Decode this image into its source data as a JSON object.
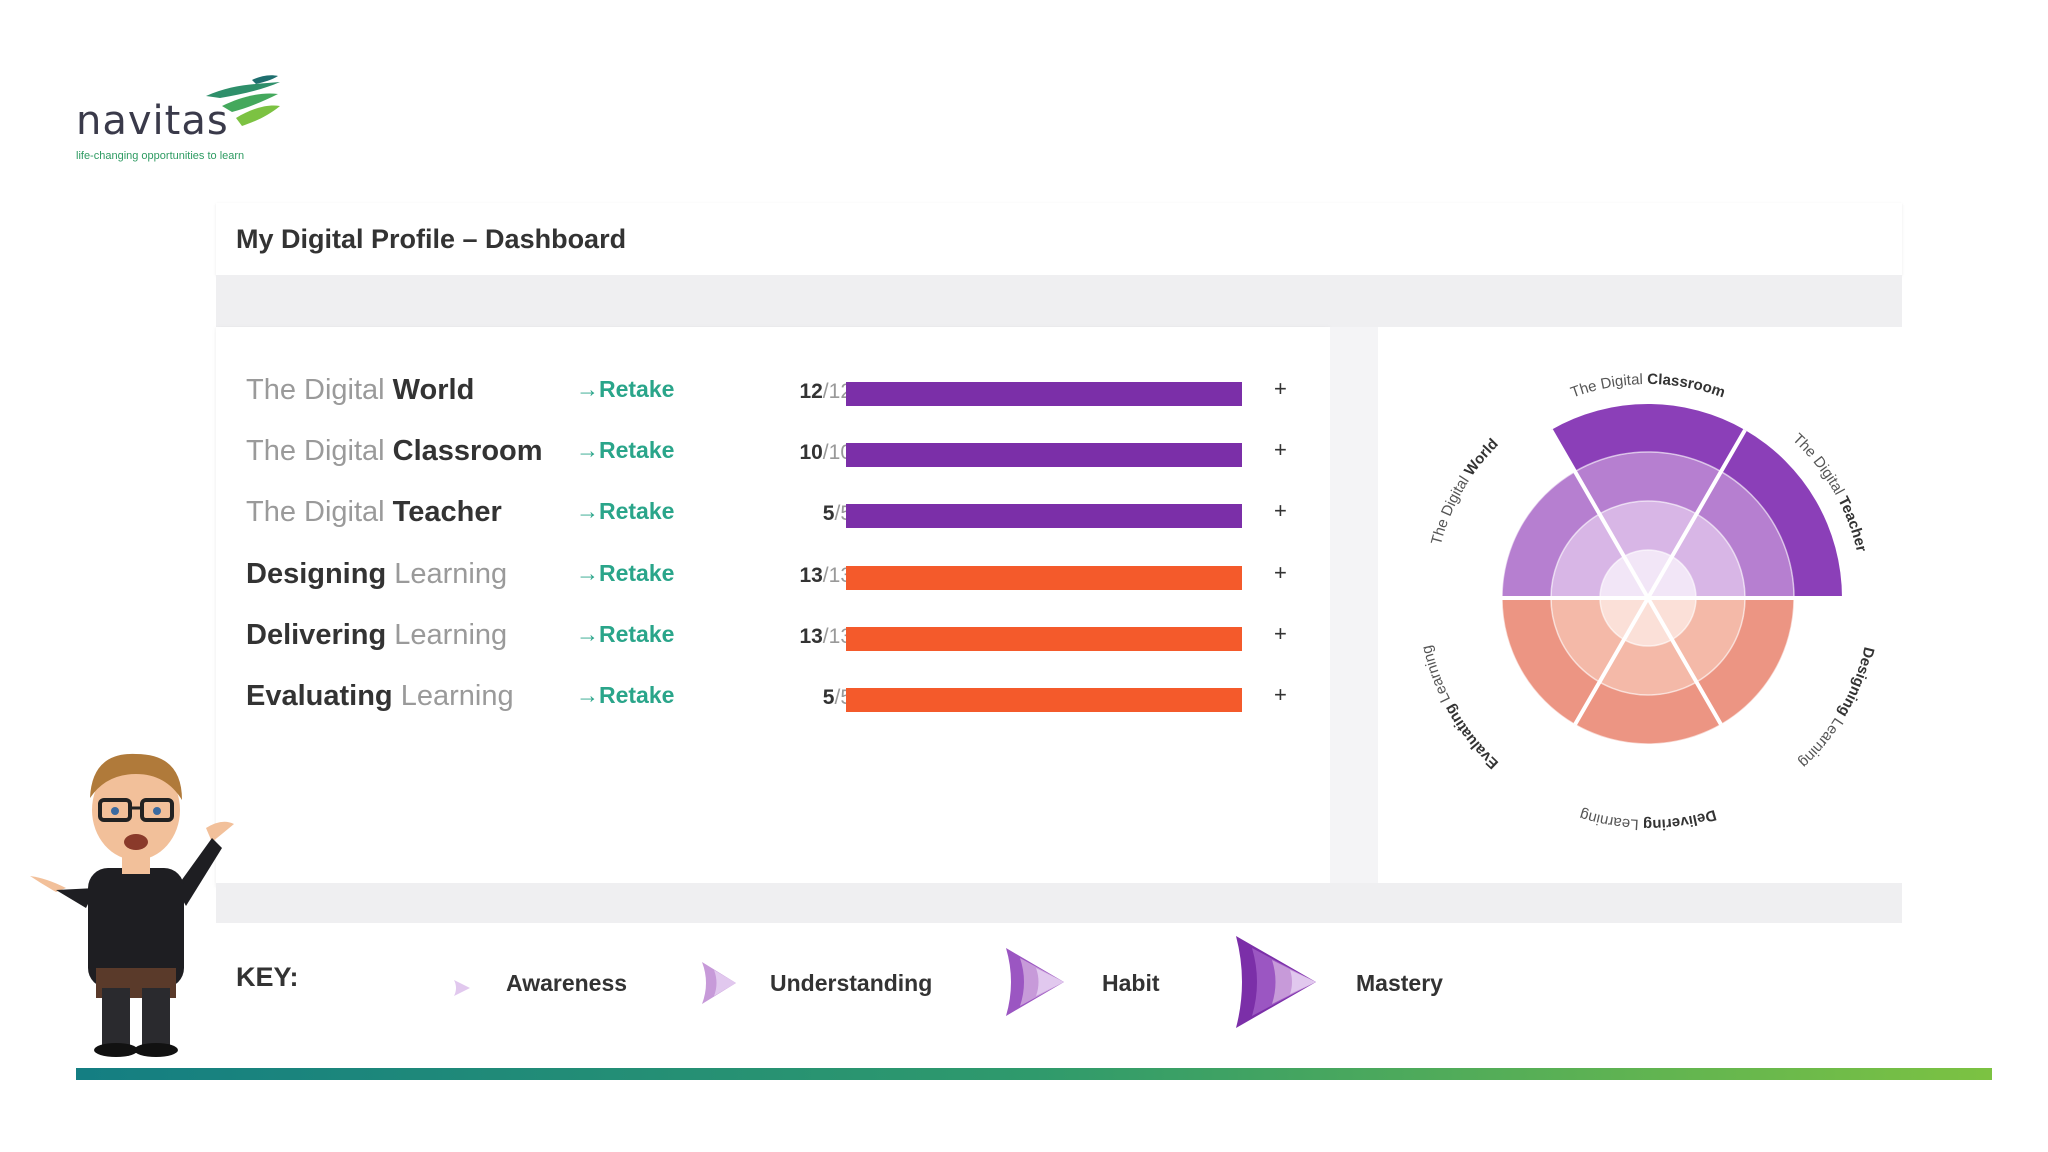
{
  "logo": {
    "word": "navitas",
    "tagline": "life-changing opportunities to learn"
  },
  "header": {
    "title": "My Digital Profile – Dashboard"
  },
  "retake_label": "Retake",
  "rows": [
    {
      "light_first": true,
      "light": "The Digital ",
      "bold": "World",
      "score": "12",
      "total": "12",
      "fraction": 1.0,
      "color": "#7b2fa8"
    },
    {
      "light_first": true,
      "light": "The Digital ",
      "bold": "Classroom",
      "score": "10",
      "total": "10",
      "fraction": 1.0,
      "color": "#7b2fa8"
    },
    {
      "light_first": true,
      "light": "The Digital ",
      "bold": "Teacher",
      "score": "5",
      "total": "5",
      "fraction": 1.0,
      "color": "#7b2fa8"
    },
    {
      "light_first": false,
      "bold": "Designing",
      "light": " Learning",
      "score": "13",
      "total": "13",
      "fraction": 1.0,
      "color": "#f45a2b"
    },
    {
      "light_first": false,
      "bold": "Delivering",
      "light": " Learning",
      "score": "13",
      "total": "13",
      "fraction": 1.0,
      "color": "#f45a2b"
    },
    {
      "light_first": false,
      "bold": "Evaluating",
      "light": " Learning",
      "score": "5",
      "total": "5",
      "fraction": 1.0,
      "color": "#f45a2b"
    }
  ],
  "wheel": {
    "labels": [
      {
        "light": "The Digital ",
        "bold": "World"
      },
      {
        "light": "The Digital ",
        "bold": "Classroom"
      },
      {
        "light": "The Digital ",
        "bold": "Teacher"
      },
      {
        "bold": "Designing",
        "light": " Learning"
      },
      {
        "bold": "Delivering",
        "light": " Learning"
      },
      {
        "bold": "Evaluating",
        "light": " Learning"
      }
    ],
    "levels": [
      3,
      4,
      4,
      3,
      3,
      3
    ],
    "colors": {
      "purple": "#8b3fb8",
      "orange": "#e8806e"
    }
  },
  "key": {
    "label": "KEY:",
    "items": [
      "Awareness",
      "Understanding",
      "Habit",
      "Mastery"
    ],
    "icon_color": "#8b3fb8"
  }
}
